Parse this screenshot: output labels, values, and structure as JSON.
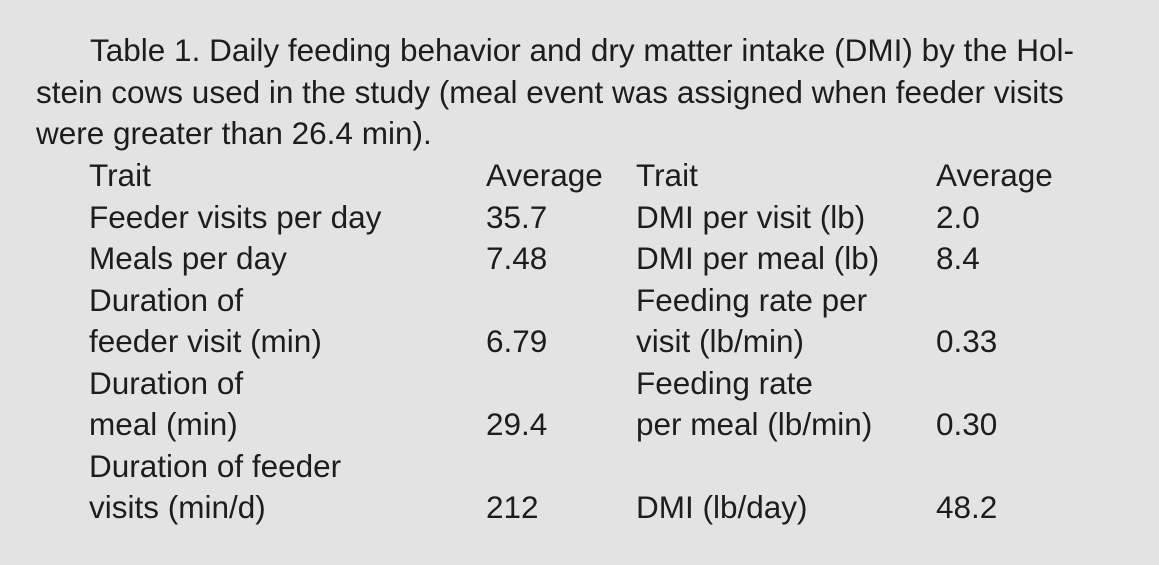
{
  "caption": "Table 1. Daily feeding behavior and dry matter intake (DMI) by the Hol-stein cows used in the study (meal event was assigned when feeder visits were greater than 26.4 min).",
  "caption_lines": [
    "Table 1. Daily feeding behavior and dry matter intake (DMI) by the Hol-",
    "stein cows used in the study (meal event was assigned when feeder visits",
    "were greater than 26.4 min)."
  ],
  "table": {
    "headers": [
      "Trait",
      "Average",
      "Trait",
      "Average"
    ],
    "rows": [
      {
        "trait_left": [
          "Feeder visits per day"
        ],
        "avg_left": "35.7",
        "trait_right": [
          "DMI per visit (lb)"
        ],
        "avg_right": "2.0"
      },
      {
        "trait_left": [
          "Meals per day"
        ],
        "avg_left": "7.48",
        "trait_right": [
          "DMI per meal (lb)"
        ],
        "avg_right": "8.4"
      },
      {
        "trait_left": [
          "Duration of",
          "feeder visit (min)"
        ],
        "avg_left": "6.79",
        "trait_right": [
          "Feeding rate per",
          "visit (lb/min)"
        ],
        "avg_right": "0.33"
      },
      {
        "trait_left": [
          "Duration of",
          "meal (min)"
        ],
        "avg_left": "29.4",
        "trait_right": [
          "Feeding rate",
          "per meal (lb/min)"
        ],
        "avg_right": "0.30"
      },
      {
        "trait_left": [
          "Duration of feeder",
          "visits (min/d)"
        ],
        "avg_left": "212",
        "trait_right": [
          "DMI (lb/day)"
        ],
        "avg_right": "48.2"
      }
    ]
  }
}
